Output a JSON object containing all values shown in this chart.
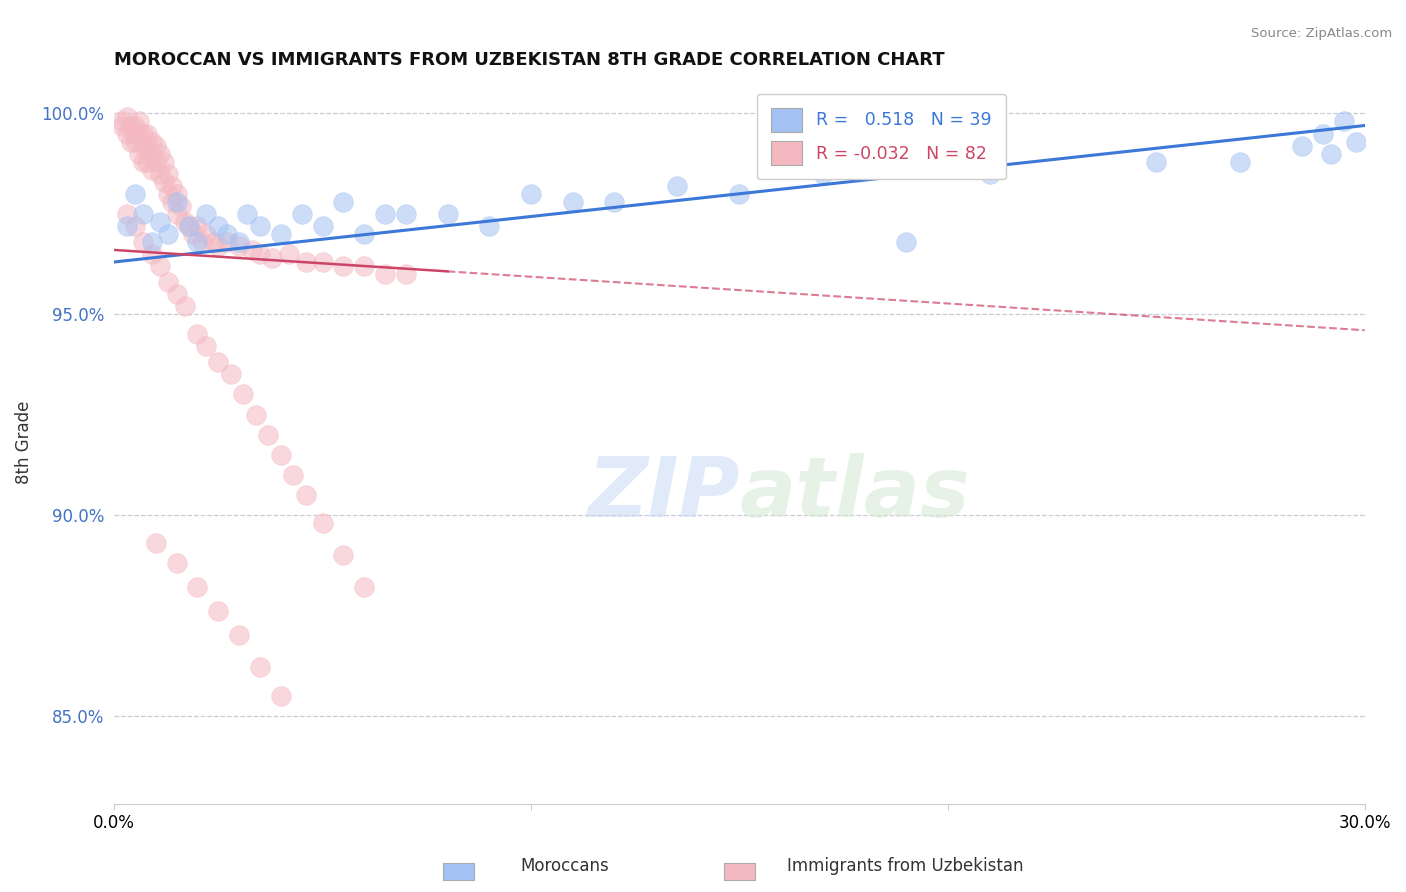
{
  "title": "MOROCCAN VS IMMIGRANTS FROM UZBEKISTAN 8TH GRADE CORRELATION CHART",
  "source": "Source: ZipAtlas.com",
  "ylabel": "8th Grade",
  "xlim": [
    0.0,
    0.3
  ],
  "ylim": [
    0.828,
    1.008
  ],
  "yticks": [
    0.85,
    0.9,
    0.95,
    1.0
  ],
  "ytick_labels": [
    "85.0%",
    "90.0%",
    "95.0%",
    "100.0%"
  ],
  "xticks": [
    0.0,
    0.1,
    0.2,
    0.3
  ],
  "xtick_labels": [
    "0.0%",
    "",
    "",
    "30.0%"
  ],
  "legend_label1": "Moroccans",
  "legend_label2": "Immigrants from Uzbekistan",
  "R1": 0.518,
  "N1": 39,
  "R2": -0.032,
  "N2": 82,
  "blue_color": "#a4c2f4",
  "pink_color": "#f4b8c1",
  "blue_line_color": "#3c78d8",
  "pink_line_color": "#cc4466",
  "watermark_zip": "ZIP",
  "watermark_atlas": "atlas",
  "blue_scatter_x": [
    0.003,
    0.005,
    0.007,
    0.009,
    0.011,
    0.013,
    0.015,
    0.018,
    0.02,
    0.022,
    0.025,
    0.027,
    0.03,
    0.032,
    0.035,
    0.04,
    0.045,
    0.05,
    0.055,
    0.06,
    0.065,
    0.07,
    0.08,
    0.09,
    0.1,
    0.11,
    0.12,
    0.135,
    0.15,
    0.17,
    0.19,
    0.21,
    0.25,
    0.27,
    0.285,
    0.29,
    0.292,
    0.295,
    0.298
  ],
  "blue_scatter_y": [
    0.972,
    0.98,
    0.975,
    0.968,
    0.973,
    0.97,
    0.978,
    0.972,
    0.968,
    0.975,
    0.972,
    0.97,
    0.968,
    0.975,
    0.972,
    0.97,
    0.975,
    0.972,
    0.978,
    0.97,
    0.975,
    0.975,
    0.975,
    0.972,
    0.98,
    0.978,
    0.978,
    0.982,
    0.98,
    0.985,
    0.968,
    0.985,
    0.988,
    0.988,
    0.992,
    0.995,
    0.99,
    0.998,
    0.993
  ],
  "pink_scatter_x": [
    0.002,
    0.002,
    0.003,
    0.003,
    0.004,
    0.004,
    0.005,
    0.005,
    0.005,
    0.006,
    0.006,
    0.006,
    0.007,
    0.007,
    0.007,
    0.008,
    0.008,
    0.008,
    0.009,
    0.009,
    0.009,
    0.01,
    0.01,
    0.011,
    0.011,
    0.012,
    0.012,
    0.013,
    0.013,
    0.014,
    0.014,
    0.015,
    0.015,
    0.016,
    0.017,
    0.018,
    0.019,
    0.02,
    0.021,
    0.022,
    0.024,
    0.025,
    0.027,
    0.03,
    0.033,
    0.035,
    0.038,
    0.042,
    0.046,
    0.05,
    0.055,
    0.06,
    0.065,
    0.07,
    0.003,
    0.005,
    0.007,
    0.009,
    0.011,
    0.013,
    0.015,
    0.017,
    0.02,
    0.022,
    0.025,
    0.028,
    0.031,
    0.034,
    0.037,
    0.04,
    0.043,
    0.046,
    0.05,
    0.055,
    0.06,
    0.01,
    0.015,
    0.02,
    0.025,
    0.03,
    0.035,
    0.04
  ],
  "pink_scatter_y": [
    0.998,
    0.997,
    0.999,
    0.995,
    0.997,
    0.993,
    0.997,
    0.995,
    0.993,
    0.998,
    0.995,
    0.99,
    0.995,
    0.992,
    0.988,
    0.995,
    0.992,
    0.988,
    0.993,
    0.99,
    0.986,
    0.992,
    0.988,
    0.99,
    0.985,
    0.988,
    0.983,
    0.985,
    0.98,
    0.982,
    0.978,
    0.98,
    0.975,
    0.977,
    0.973,
    0.972,
    0.97,
    0.972,
    0.968,
    0.97,
    0.968,
    0.967,
    0.968,
    0.967,
    0.966,
    0.965,
    0.964,
    0.965,
    0.963,
    0.963,
    0.962,
    0.962,
    0.96,
    0.96,
    0.975,
    0.972,
    0.968,
    0.965,
    0.962,
    0.958,
    0.955,
    0.952,
    0.945,
    0.942,
    0.938,
    0.935,
    0.93,
    0.925,
    0.92,
    0.915,
    0.91,
    0.905,
    0.898,
    0.89,
    0.882,
    0.893,
    0.888,
    0.882,
    0.876,
    0.87,
    0.862,
    0.855
  ],
  "blue_trendline_x": [
    0.0,
    0.3
  ],
  "blue_trendline_y": [
    0.963,
    0.997
  ],
  "pink_trendline_x": [
    0.0,
    0.3
  ],
  "pink_trendline_y": [
    0.966,
    0.946
  ]
}
